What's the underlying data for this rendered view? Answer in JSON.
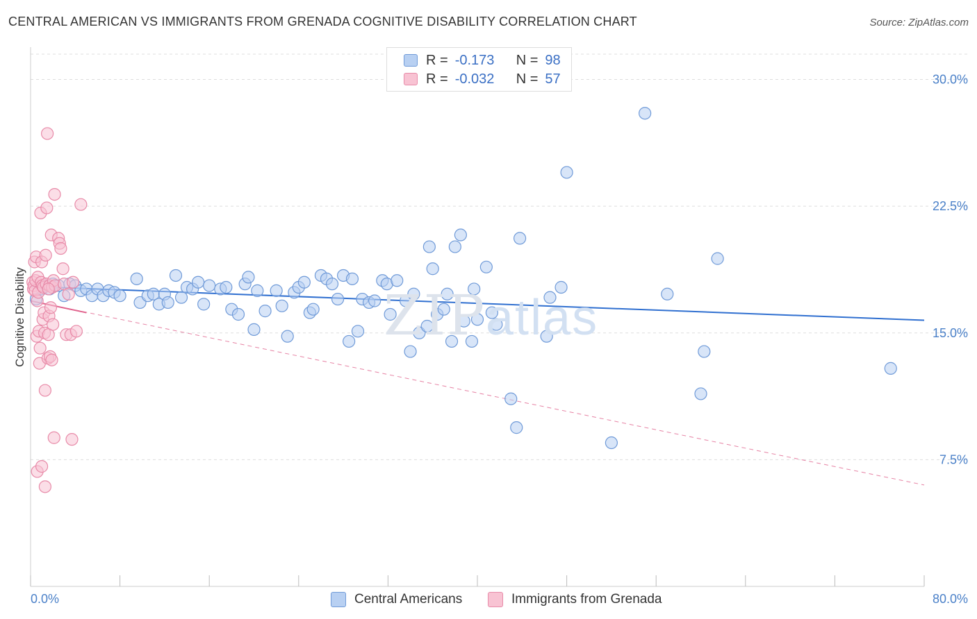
{
  "header": {
    "title": "CENTRAL AMERICAN VS IMMIGRANTS FROM GRENADA COGNITIVE DISABILITY CORRELATION CHART",
    "source": "Source: ZipAtlas.com"
  },
  "legend": {
    "rows": [
      {
        "r_label": "R =",
        "r_value": "-0.173",
        "n_label": "N =",
        "n_value": "98"
      },
      {
        "r_label": "R =",
        "r_value": "-0.032",
        "n_label": "N =",
        "n_value": "57"
      }
    ]
  },
  "watermark": {
    "zip": "ZIP",
    "atlas": "atlas"
  },
  "colors": {
    "blue": "#6f9ad8",
    "blue_fill": "#b8d0f2",
    "blue_line": "#2f6fd0",
    "pink": "#e88aa8",
    "pink_fill": "#f8c3d3",
    "pink_line": "#e0628c",
    "grid": "#dddddd",
    "tick_text": "#4a80c8"
  },
  "chart_data": {
    "type": "scatter",
    "title": "CENTRAL AMERICAN VS IMMIGRANTS FROM GRENADA COGNITIVE DISABILITY CORRELATION CHART",
    "xlabel": "",
    "ylabel": "Cognitive Disability",
    "xlim": [
      0,
      80
    ],
    "ylim": [
      0,
      31.5
    ],
    "x_tick_labels": [
      "0.0%",
      "80.0%"
    ],
    "y_ticks": [
      7.5,
      15.0,
      22.5,
      30.0
    ],
    "y_tick_labels": [
      "7.5%",
      "15.0%",
      "22.5%",
      "30.0%"
    ],
    "grid": true,
    "series": [
      {
        "name": "Central Americans",
        "color": "blue",
        "points": [
          [
            0.5,
            17.0
          ],
          [
            1.0,
            17.6
          ],
          [
            1.4,
            17.8
          ],
          [
            1.7,
            17.6
          ],
          [
            2.0,
            17.9
          ],
          [
            2.5,
            17.8
          ],
          [
            3.0,
            17.2
          ],
          [
            3.5,
            17.9
          ],
          [
            4.0,
            17.8
          ],
          [
            4.5,
            17.5
          ],
          [
            5.0,
            17.6
          ],
          [
            5.5,
            17.2
          ],
          [
            6.0,
            17.6
          ],
          [
            6.5,
            17.2
          ],
          [
            7.0,
            17.5
          ],
          [
            7.5,
            17.4
          ],
          [
            8.0,
            17.2
          ],
          [
            9.5,
            18.2
          ],
          [
            9.8,
            16.8
          ],
          [
            10.5,
            17.2
          ],
          [
            11.0,
            17.3
          ],
          [
            11.5,
            16.7
          ],
          [
            12.0,
            17.3
          ],
          [
            12.3,
            16.8
          ],
          [
            13.0,
            18.4
          ],
          [
            13.5,
            17.1
          ],
          [
            14.0,
            17.7
          ],
          [
            14.5,
            17.6
          ],
          [
            15.0,
            18.0
          ],
          [
            15.5,
            16.7
          ],
          [
            16.0,
            17.8
          ],
          [
            17.0,
            17.6
          ],
          [
            17.5,
            17.7
          ],
          [
            18.0,
            16.4
          ],
          [
            18.6,
            16.1
          ],
          [
            19.2,
            17.9
          ],
          [
            19.5,
            18.3
          ],
          [
            20.0,
            15.2
          ],
          [
            20.3,
            17.5
          ],
          [
            21.0,
            16.3
          ],
          [
            22.0,
            17.5
          ],
          [
            22.5,
            16.6
          ],
          [
            23.0,
            14.8
          ],
          [
            23.6,
            17.4
          ],
          [
            24.0,
            17.7
          ],
          [
            24.5,
            18.0
          ],
          [
            25.0,
            16.2
          ],
          [
            25.3,
            16.4
          ],
          [
            26.0,
            18.4
          ],
          [
            26.5,
            18.2
          ],
          [
            27.0,
            17.9
          ],
          [
            27.5,
            17.0
          ],
          [
            28.0,
            18.4
          ],
          [
            28.5,
            14.5
          ],
          [
            28.8,
            18.2
          ],
          [
            29.3,
            15.1
          ],
          [
            29.7,
            17.0
          ],
          [
            30.3,
            16.8
          ],
          [
            30.8,
            16.9
          ],
          [
            31.5,
            18.1
          ],
          [
            31.9,
            17.9
          ],
          [
            32.2,
            16.1
          ],
          [
            32.8,
            18.1
          ],
          [
            33.6,
            16.9
          ],
          [
            34.0,
            13.9
          ],
          [
            34.3,
            17.3
          ],
          [
            34.8,
            15.0
          ],
          [
            35.5,
            15.4
          ],
          [
            35.7,
            20.1
          ],
          [
            36.0,
            18.8
          ],
          [
            36.4,
            16.1
          ],
          [
            37.0,
            16.4
          ],
          [
            37.3,
            17.3
          ],
          [
            37.7,
            14.5
          ],
          [
            38.0,
            20.1
          ],
          [
            38.5,
            20.8
          ],
          [
            38.8,
            15.7
          ],
          [
            39.5,
            14.5
          ],
          [
            39.7,
            17.6
          ],
          [
            40.0,
            15.8
          ],
          [
            40.8,
            18.9
          ],
          [
            41.3,
            16.2
          ],
          [
            41.7,
            15.5
          ],
          [
            43.0,
            11.1
          ],
          [
            43.5,
            9.4
          ],
          [
            43.8,
            20.6
          ],
          [
            46.2,
            14.8
          ],
          [
            46.5,
            17.1
          ],
          [
            47.5,
            17.7
          ],
          [
            48.0,
            24.5
          ],
          [
            52.0,
            8.5
          ],
          [
            55.0,
            28.0
          ],
          [
            57.0,
            17.3
          ],
          [
            60.0,
            11.4
          ],
          [
            60.3,
            13.9
          ],
          [
            61.5,
            19.4
          ],
          [
            77.0,
            12.9
          ]
        ]
      },
      {
        "name": "Immigrants from Grenada",
        "color": "pink",
        "points": [
          [
            0.2,
            18.0
          ],
          [
            0.25,
            17.6
          ],
          [
            0.3,
            17.8
          ],
          [
            0.35,
            19.2
          ],
          [
            0.4,
            17.5
          ],
          [
            0.45,
            18.1
          ],
          [
            0.5,
            19.5
          ],
          [
            0.55,
            14.8
          ],
          [
            0.6,
            16.9
          ],
          [
            0.65,
            18.3
          ],
          [
            0.7,
            17.4
          ],
          [
            0.75,
            15.1
          ],
          [
            0.8,
            13.2
          ],
          [
            0.85,
            14.1
          ],
          [
            0.9,
            22.1
          ],
          [
            0.95,
            18.0
          ],
          [
            1.0,
            19.2
          ],
          [
            1.05,
            17.8
          ],
          [
            1.1,
            15.8
          ],
          [
            1.15,
            17.7
          ],
          [
            1.2,
            16.2
          ],
          [
            1.25,
            15.0
          ],
          [
            1.3,
            11.6
          ],
          [
            1.35,
            19.6
          ],
          [
            1.4,
            17.9
          ],
          [
            1.45,
            22.4
          ],
          [
            1.5,
            26.8
          ],
          [
            1.55,
            13.5
          ],
          [
            1.6,
            14.9
          ],
          [
            1.65,
            16.0
          ],
          [
            1.7,
            17.8
          ],
          [
            1.75,
            13.6
          ],
          [
            1.8,
            16.5
          ],
          [
            1.85,
            20.8
          ],
          [
            1.9,
            13.4
          ],
          [
            1.95,
            17.7
          ],
          [
            2.0,
            15.5
          ],
          [
            2.05,
            18.1
          ],
          [
            2.1,
            8.8
          ],
          [
            2.15,
            23.2
          ],
          [
            2.2,
            17.8
          ],
          [
            2.5,
            20.6
          ],
          [
            2.6,
            20.3
          ],
          [
            2.7,
            20.0
          ],
          [
            2.9,
            18.8
          ],
          [
            3.0,
            17.9
          ],
          [
            3.2,
            14.9
          ],
          [
            3.4,
            17.3
          ],
          [
            3.6,
            14.9
          ],
          [
            3.7,
            8.7
          ],
          [
            3.8,
            18.0
          ],
          [
            4.1,
            15.1
          ],
          [
            4.5,
            22.6
          ],
          [
            0.6,
            6.8
          ],
          [
            1.0,
            7.1
          ],
          [
            1.3,
            5.9
          ],
          [
            1.6,
            17.6
          ]
        ]
      }
    ],
    "trend_lines": [
      {
        "series": "Central Americans",
        "x": [
          0,
          80
        ],
        "y": [
          17.75,
          15.75
        ],
        "style": "solid"
      },
      {
        "series": "Immigrants from Grenada",
        "x": [
          0,
          5
        ],
        "y": [
          16.9,
          16.2
        ],
        "style": "solid"
      },
      {
        "series": "Immigrants from Grenada",
        "x": [
          0,
          80
        ],
        "y": [
          16.9,
          6.0
        ],
        "style": "dashed"
      }
    ]
  },
  "bottom_legend": [
    {
      "label": "Central Americans"
    },
    {
      "label": "Immigrants from Grenada"
    }
  ]
}
